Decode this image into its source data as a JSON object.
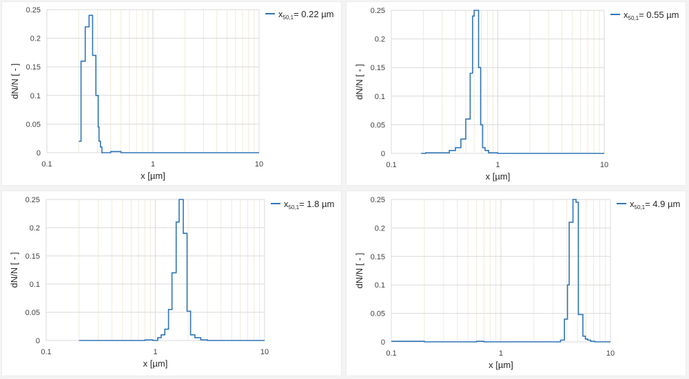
{
  "colors": {
    "series": "#2e75b6",
    "grid_major": "#d9d9d9",
    "grid_minor": "#f0ead8"
  },
  "chart_data": [
    {
      "type": "line",
      "title": "",
      "xlabel": "x [µm]",
      "ylabel": "dN/N [ - ]",
      "xscale": "log",
      "xlim": [
        0.1,
        10
      ],
      "ylim": [
        0,
        0.25
      ],
      "xticks": [
        "0.1",
        "1",
        "10"
      ],
      "yticks": [
        "0",
        "0.05",
        "0.1",
        "0.15",
        "0.2",
        "0.25"
      ],
      "grid": true,
      "legend_position": "top-right-outside",
      "legend": {
        "prefix": "x",
        "sub": "50,1",
        "suffix": "= 0.22 µm"
      },
      "series": [
        {
          "name": "x50,1 = 0.22 µm",
          "step": true,
          "x": [
            0.2,
            0.21,
            0.23,
            0.25,
            0.27,
            0.29,
            0.305,
            0.31,
            0.32,
            0.33,
            0.4,
            0.5,
            10
          ],
          "values": [
            0.02,
            0.16,
            0.22,
            0.24,
            0.17,
            0.1,
            0.045,
            0.02,
            0.01,
            0.0,
            0.002,
            0.0,
            0.0
          ]
        }
      ]
    },
    {
      "type": "line",
      "title": "",
      "xlabel": "x [µm]",
      "ylabel": "dN/N [ - ]",
      "xscale": "log",
      "xlim": [
        0.1,
        10
      ],
      "ylim": [
        0,
        0.25
      ],
      "xticks": [
        "0.1",
        "1",
        "10"
      ],
      "yticks": [
        "0",
        "0.05",
        "0.1",
        "0.15",
        "0.2",
        "0.25"
      ],
      "grid": true,
      "legend_position": "top-right-outside",
      "legend": {
        "prefix": "x",
        "sub": "50,1",
        "suffix": "= 0.55 µm"
      },
      "series": [
        {
          "name": "x50,1 = 0.55 µm",
          "step": true,
          "x": [
            0.19,
            0.21,
            0.35,
            0.4,
            0.45,
            0.5,
            0.55,
            0.58,
            0.6,
            0.66,
            0.69,
            0.72,
            0.76,
            0.82,
            1.0,
            10
          ],
          "values": [
            0.0,
            0.001,
            0.005,
            0.01,
            0.025,
            0.06,
            0.14,
            0.24,
            0.25,
            0.15,
            0.05,
            0.01,
            0.005,
            0.001,
            0.0,
            0.0
          ]
        }
      ]
    },
    {
      "type": "line",
      "title": "",
      "xlabel": "x [µm]",
      "ylabel": "dN/N [ - ]",
      "xscale": "log",
      "xlim": [
        0.1,
        10
      ],
      "ylim": [
        0,
        0.25
      ],
      "xticks": [
        "0.1",
        "1",
        "10"
      ],
      "yticks": [
        "0",
        "0.05",
        "0.1",
        "0.15",
        "0.2",
        "0.25"
      ],
      "grid": true,
      "legend_position": "top-right-outside",
      "legend": {
        "prefix": "x",
        "sub": "50,1",
        "suffix": "= 1.8 µm"
      },
      "series": [
        {
          "name": "x50,1 = 1.8 µm",
          "step": true,
          "x": [
            0.2,
            0.8,
            0.95,
            1.05,
            1.13,
            1.22,
            1.32,
            1.42,
            1.55,
            1.65,
            1.8,
            1.95,
            2.1,
            2.3,
            2.6,
            3.0,
            10
          ],
          "values": [
            0.0,
            0.001,
            0.0,
            0.005,
            0.01,
            0.02,
            0.055,
            0.12,
            0.21,
            0.25,
            0.19,
            0.052,
            0.01,
            0.005,
            0.001,
            0.0,
            0.0
          ]
        }
      ]
    },
    {
      "type": "line",
      "title": "",
      "xlabel": "x [µm]",
      "ylabel": "dN/N [ - ]",
      "xscale": "log",
      "xlim": [
        0.1,
        10
      ],
      "ylim": [
        0,
        0.25
      ],
      "xticks": [
        "0.1",
        "1",
        "10"
      ],
      "yticks": [
        "0",
        "0.05",
        "0.1",
        "0.15",
        "0.2",
        "0.25"
      ],
      "grid": true,
      "legend_position": "top-right-outside",
      "legend": {
        "prefix": "x",
        "sub": "50,1",
        "suffix": "= 4.9 µm"
      },
      "series": [
        {
          "name": "x50,1 = 4.9 µm",
          "step": true,
          "x": [
            0.1,
            0.2,
            0.6,
            0.7,
            3.5,
            3.8,
            4.05,
            4.2,
            4.55,
            4.85,
            5.1,
            5.6,
            5.9,
            6.2,
            6.6,
            7.2,
            10
          ],
          "values": [
            0.001,
            0.0,
            0.001,
            0.0,
            0.003,
            0.04,
            0.1,
            0.21,
            0.25,
            0.245,
            0.048,
            0.01,
            0.005,
            0.003,
            0.001,
            0.0,
            0.0
          ]
        }
      ]
    }
  ],
  "panels": [
    {
      "legend_label": "x50,1 = 0.22 µm"
    },
    {
      "legend_label": "x50,1 = 0.55 µm"
    },
    {
      "legend_label": "x50,1 = 1.8 µm"
    },
    {
      "legend_label": "x50,1 = 4.9 µm"
    }
  ]
}
